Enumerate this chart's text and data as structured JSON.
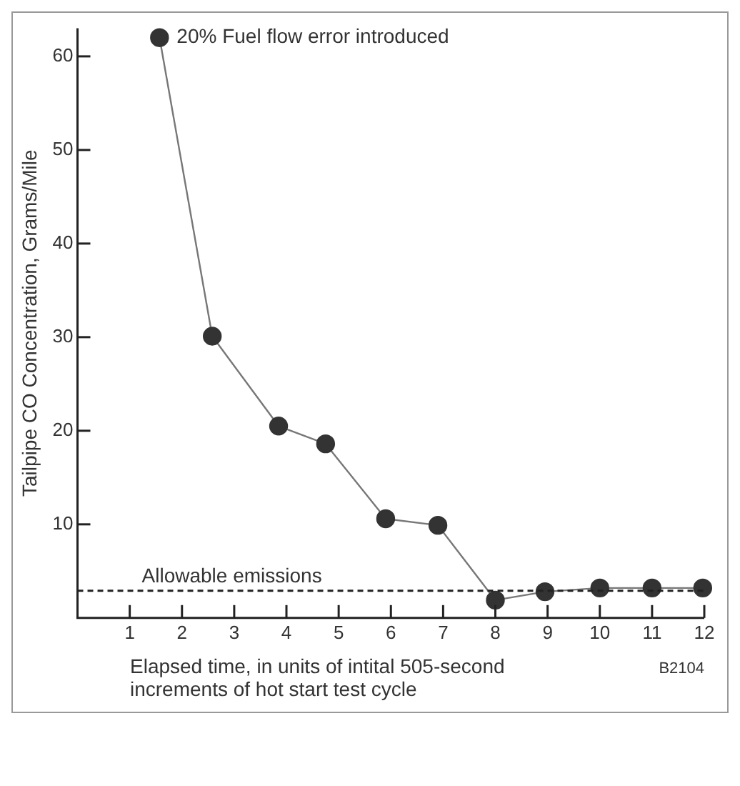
{
  "chart_data": {
    "type": "line",
    "ylabel": "Tailpipe CO Concentration, Grams/Mile",
    "xlabel": "Elapsed time, in units of intital 505-second increments of hot start test cycle",
    "x": [
      1.57,
      2.58,
      3.85,
      4.75,
      5.9,
      6.9,
      8.0,
      8.95,
      10.0,
      11.0,
      11.97
    ],
    "series": [
      {
        "color": "#333333",
        "values": [
          62,
          30.1,
          20.5,
          18.6,
          10.6,
          9.9,
          1.9,
          2.8,
          3.2,
          3.2,
          3.2
        ]
      }
    ],
    "xlim": [
      0,
      12
    ],
    "xticks": [
      1,
      2,
      3,
      4,
      5,
      6,
      7,
      8,
      9,
      10,
      11,
      12
    ],
    "ylim": [
      0,
      63
    ],
    "yticks": [
      10,
      20,
      30,
      40,
      50,
      60
    ],
    "marker": "circle",
    "line_style": "solid",
    "grid": false,
    "legend": false,
    "ref_lines": [
      {
        "axis": "y",
        "value": 2.9,
        "label": "Allowable emissions",
        "line_style": "dashed",
        "color": "#222222"
      }
    ],
    "annotations": [
      {
        "text": "20% Fuel flow error introduced",
        "x": 1.57,
        "y": 62
      },
      "B2104"
    ]
  }
}
